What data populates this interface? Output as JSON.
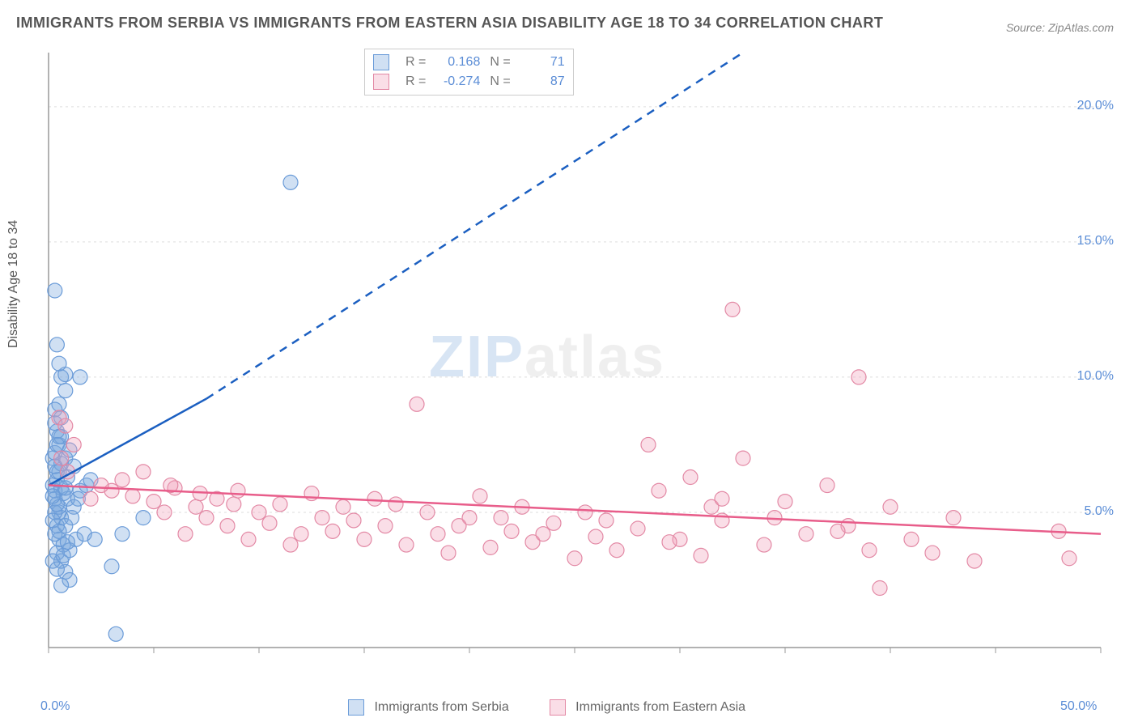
{
  "title": "IMMIGRANTS FROM SERBIA VS IMMIGRANTS FROM EASTERN ASIA DISABILITY AGE 18 TO 34 CORRELATION CHART",
  "source": "Source: ZipAtlas.com",
  "ylabel": "Disability Age 18 to 34",
  "watermark_a": "ZIP",
  "watermark_b": "atlas",
  "chart": {
    "type": "scatter",
    "background_color": "#ffffff",
    "grid_color": "#dddddd",
    "grid_dash": "3,4",
    "axis_color": "#999999",
    "tick_font_color": "#5b8dd6",
    "tick_font_size": 16,
    "xlim": [
      0,
      50
    ],
    "ylim": [
      0,
      22
    ],
    "x_ticks": [
      0,
      5,
      10,
      15,
      20,
      25,
      30,
      35,
      40,
      45,
      50
    ],
    "x_tick_labels": {
      "0": "0.0%",
      "50": "50.0%"
    },
    "y_ticks": [
      5,
      10,
      15,
      20
    ],
    "y_tick_labels": {
      "5": "5.0%",
      "10": "10.0%",
      "15": "15.0%",
      "20": "20.0%"
    },
    "marker_radius": 9,
    "marker_stroke_width": 1.2,
    "series": [
      {
        "name": "Immigrants from Serbia",
        "fill": "rgba(120,165,220,0.35)",
        "stroke": "#6a9bd8",
        "r_value": "0.168",
        "n_value": "71",
        "trend": {
          "color": "#1b5fc1",
          "width": 2.5,
          "solid_from": [
            0,
            6.0
          ],
          "solid_to": [
            7.5,
            9.2
          ],
          "dash_to": [
            33,
            22
          ]
        },
        "points": [
          [
            0.2,
            6.0
          ],
          [
            0.3,
            5.8
          ],
          [
            0.4,
            6.2
          ],
          [
            0.3,
            5.5
          ],
          [
            0.5,
            5.0
          ],
          [
            0.6,
            4.8
          ],
          [
            0.4,
            4.5
          ],
          [
            0.2,
            7.0
          ],
          [
            0.3,
            7.2
          ],
          [
            0.5,
            7.5
          ],
          [
            0.6,
            7.8
          ],
          [
            0.4,
            8.0
          ],
          [
            0.3,
            8.3
          ],
          [
            0.5,
            9.0
          ],
          [
            0.6,
            10.0
          ],
          [
            0.8,
            10.1
          ],
          [
            1.5,
            10.0
          ],
          [
            0.4,
            11.2
          ],
          [
            0.3,
            13.2
          ],
          [
            0.5,
            4.0
          ],
          [
            0.7,
            3.8
          ],
          [
            1.0,
            3.6
          ],
          [
            1.3,
            4.0
          ],
          [
            1.7,
            4.2
          ],
          [
            2.2,
            4.0
          ],
          [
            3.5,
            4.2
          ],
          [
            4.5,
            4.8
          ],
          [
            3.0,
            3.0
          ],
          [
            0.8,
            2.8
          ],
          [
            1.0,
            2.5
          ],
          [
            0.6,
            2.3
          ],
          [
            1.2,
            5.2
          ],
          [
            1.5,
            5.8
          ],
          [
            1.8,
            6.0
          ],
          [
            2.0,
            6.2
          ],
          [
            0.5,
            5.2
          ],
          [
            0.9,
            5.5
          ],
          [
            0.3,
            4.2
          ],
          [
            0.4,
            3.5
          ],
          [
            0.6,
            3.2
          ],
          [
            0.8,
            4.5
          ],
          [
            1.1,
            4.8
          ],
          [
            11.5,
            17.2
          ],
          [
            3.2,
            0.5
          ],
          [
            0.4,
            6.5
          ],
          [
            0.6,
            6.8
          ],
          [
            0.8,
            7.0
          ],
          [
            0.3,
            5.0
          ],
          [
            0.5,
            6.5
          ],
          [
            0.7,
            5.7
          ],
          [
            0.9,
            6.3
          ],
          [
            1.2,
            6.7
          ],
          [
            0.2,
            4.7
          ],
          [
            0.4,
            5.3
          ],
          [
            0.6,
            5.9
          ],
          [
            0.3,
            6.7
          ],
          [
            0.5,
            7.8
          ],
          [
            0.2,
            3.2
          ],
          [
            0.4,
            2.9
          ],
          [
            0.7,
            3.4
          ],
          [
            0.9,
            3.9
          ],
          [
            1.4,
            5.5
          ],
          [
            0.3,
            8.8
          ],
          [
            0.6,
            8.5
          ],
          [
            0.8,
            9.5
          ],
          [
            0.5,
            10.5
          ],
          [
            0.4,
            7.5
          ],
          [
            0.2,
            5.6
          ],
          [
            0.5,
            4.3
          ],
          [
            0.8,
            5.9
          ],
          [
            1.0,
            7.3
          ]
        ]
      },
      {
        "name": "Immigrants from Eastern Asia",
        "fill": "rgba(240,160,185,0.35)",
        "stroke": "#e389a5",
        "r_value": "-0.274",
        "n_value": "87",
        "trend": {
          "color": "#e85d8a",
          "width": 2.5,
          "solid_from": [
            0,
            6.0
          ],
          "solid_to": [
            50,
            4.2
          ],
          "dash_to": null
        },
        "points": [
          [
            0.5,
            8.5
          ],
          [
            0.8,
            8.2
          ],
          [
            1.2,
            7.5
          ],
          [
            0.6,
            7.0
          ],
          [
            0.9,
            6.5
          ],
          [
            3.0,
            5.8
          ],
          [
            4.0,
            5.6
          ],
          [
            5.0,
            5.4
          ],
          [
            5.5,
            5.0
          ],
          [
            6.0,
            5.9
          ],
          [
            7.0,
            5.2
          ],
          [
            7.5,
            4.8
          ],
          [
            8.0,
            5.5
          ],
          [
            8.5,
            4.5
          ],
          [
            9.0,
            5.8
          ],
          [
            10.0,
            5.0
          ],
          [
            10.5,
            4.6
          ],
          [
            11.0,
            5.3
          ],
          [
            12.0,
            4.2
          ],
          [
            12.5,
            5.7
          ],
          [
            13.0,
            4.8
          ],
          [
            13.5,
            4.3
          ],
          [
            14.0,
            5.2
          ],
          [
            15.0,
            4.0
          ],
          [
            15.5,
            5.5
          ],
          [
            16.0,
            4.5
          ],
          [
            17.0,
            3.8
          ],
          [
            18.0,
            5.0
          ],
          [
            18.5,
            4.2
          ],
          [
            19.0,
            3.5
          ],
          [
            20.0,
            4.8
          ],
          [
            20.5,
            5.6
          ],
          [
            21.0,
            3.7
          ],
          [
            22.0,
            4.3
          ],
          [
            22.5,
            5.2
          ],
          [
            23.0,
            3.9
          ],
          [
            24.0,
            4.6
          ],
          [
            25.0,
            3.3
          ],
          [
            25.5,
            5.0
          ],
          [
            26.0,
            4.1
          ],
          [
            17.5,
            9.0
          ],
          [
            27.0,
            3.6
          ],
          [
            28.0,
            4.4
          ],
          [
            28.5,
            7.5
          ],
          [
            29.0,
            5.8
          ],
          [
            30.0,
            4.0
          ],
          [
            30.5,
            6.3
          ],
          [
            31.0,
            3.4
          ],
          [
            31.5,
            5.2
          ],
          [
            32.0,
            4.7
          ],
          [
            33.0,
            7.0
          ],
          [
            34.0,
            3.8
          ],
          [
            35.0,
            5.4
          ],
          [
            36.0,
            4.2
          ],
          [
            37.0,
            6.0
          ],
          [
            38.0,
            4.5
          ],
          [
            32.5,
            12.5
          ],
          [
            39.0,
            3.6
          ],
          [
            40.0,
            5.2
          ],
          [
            41.0,
            4.0
          ],
          [
            38.5,
            10.0
          ],
          [
            42.0,
            3.5
          ],
          [
            39.5,
            2.2
          ],
          [
            43.0,
            4.8
          ],
          [
            44.0,
            3.2
          ],
          [
            48.0,
            4.3
          ],
          [
            48.5,
            3.3
          ],
          [
            6.5,
            4.2
          ],
          [
            9.5,
            4.0
          ],
          [
            11.5,
            3.8
          ],
          [
            14.5,
            4.7
          ],
          [
            16.5,
            5.3
          ],
          [
            19.5,
            4.5
          ],
          [
            21.5,
            4.8
          ],
          [
            23.5,
            4.2
          ],
          [
            26.5,
            4.7
          ],
          [
            29.5,
            3.9
          ],
          [
            32.0,
            5.5
          ],
          [
            34.5,
            4.8
          ],
          [
            37.5,
            4.3
          ],
          [
            3.5,
            6.2
          ],
          [
            4.5,
            6.5
          ],
          [
            5.8,
            6.0
          ],
          [
            7.2,
            5.7
          ],
          [
            8.8,
            5.3
          ],
          [
            2.0,
            5.5
          ],
          [
            2.5,
            6.0
          ]
        ]
      }
    ]
  },
  "bottom_legend": [
    {
      "label": "Immigrants from Serbia",
      "fill": "rgba(120,165,220,0.35)",
      "stroke": "#6a9bd8"
    },
    {
      "label": "Immigrants from Eastern Asia",
      "fill": "rgba(240,160,185,0.35)",
      "stroke": "#e389a5"
    }
  ]
}
